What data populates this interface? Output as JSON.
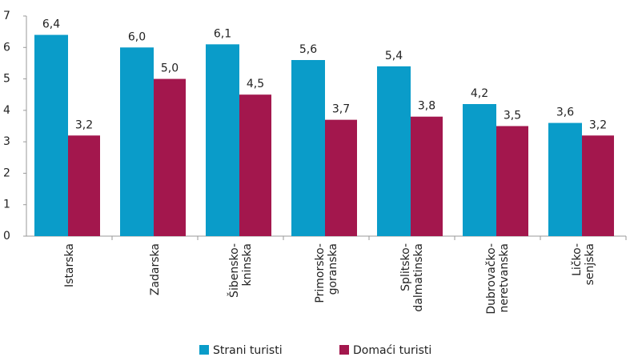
{
  "chart_data": {
    "type": "bar",
    "categories": [
      "Istarska",
      "Zadarska",
      "Šibensko-\nkninska",
      "Primorsko-\ngoranska",
      "Splitsko-\ndalmatinska",
      "Dubrovačko-\nneretvanska",
      "Ličko-\nsenjska"
    ],
    "series": [
      {
        "name": "Strani turisti",
        "color": "#0a9cc9",
        "values": [
          6.4,
          6.0,
          6.1,
          5.6,
          5.4,
          4.2,
          3.6
        ],
        "value_labels": [
          "6,4",
          "6,0",
          "6,1",
          "5,6",
          "5,4",
          "4,2",
          "3,6"
        ]
      },
      {
        "name": "Domaći turisti",
        "color": "#a3174d",
        "values": [
          3.2,
          5.0,
          4.5,
          3.7,
          3.8,
          3.5,
          3.2
        ],
        "value_labels": [
          "3,2",
          "5,0",
          "4,5",
          "3,7",
          "3,8",
          "3,5",
          "3,2"
        ]
      }
    ],
    "ylim": [
      0,
      7
    ],
    "yticks": [
      0,
      1,
      2,
      3,
      4,
      5,
      6,
      7
    ],
    "grid": false,
    "legend": "bottom"
  }
}
